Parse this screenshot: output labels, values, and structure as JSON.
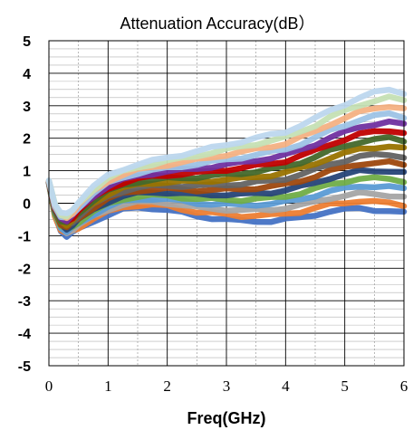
{
  "chart_data": {
    "type": "line",
    "title": "Attenuation Accuracy(dB）",
    "xlabel": "Freq(GHz)",
    "ylabel": "",
    "xlim": [
      0,
      6
    ],
    "ylim": [
      -5,
      5
    ],
    "x_ticks": [
      "0",
      "1",
      "2",
      "3",
      "4",
      "5",
      "6"
    ],
    "y_ticks": [
      "5",
      "4",
      "3",
      "2",
      "1",
      "0",
      "-1",
      "-2",
      "-3",
      "-4",
      "-5"
    ],
    "grid": true,
    "x": [
      0,
      0.1,
      0.2,
      0.3,
      0.4,
      0.5,
      0.75,
      1,
      1.25,
      1.5,
      1.75,
      2,
      2.25,
      2.5,
      2.75,
      3,
      3.25,
      3.5,
      3.75,
      4,
      4.25,
      4.5,
      4.75,
      5,
      5.25,
      5.5,
      5.75,
      6
    ],
    "upper_envelope": [
      0.7,
      0.0,
      -0.3,
      -0.35,
      -0.2,
      0.05,
      0.5,
      0.85,
      1.05,
      1.2,
      1.3,
      1.4,
      1.5,
      1.6,
      1.7,
      1.8,
      1.9,
      2.0,
      2.1,
      2.2,
      2.4,
      2.6,
      2.85,
      3.05,
      3.25,
      3.4,
      3.5,
      3.4
    ],
    "lower_envelope": [
      0.6,
      -0.4,
      -0.85,
      -1.0,
      -0.9,
      -0.8,
      -0.55,
      -0.35,
      -0.2,
      -0.15,
      -0.15,
      -0.2,
      -0.3,
      -0.4,
      -0.45,
      -0.5,
      -0.55,
      -0.55,
      -0.55,
      -0.5,
      -0.45,
      -0.35,
      -0.25,
      -0.2,
      -0.15,
      -0.2,
      -0.25,
      -0.3
    ],
    "series_count": 16,
    "series_colors": [
      "#4472c4",
      "#ed7d31",
      "#a5a5a5",
      "#5b9bd5",
      "#70ad47",
      "#264478",
      "#9e480e",
      "#636363",
      "#997300",
      "#43682b",
      "#c00000",
      "#7030a0",
      "#9dc3e6",
      "#f4b183",
      "#c5e0b4",
      "#bdd7ee"
    ]
  }
}
